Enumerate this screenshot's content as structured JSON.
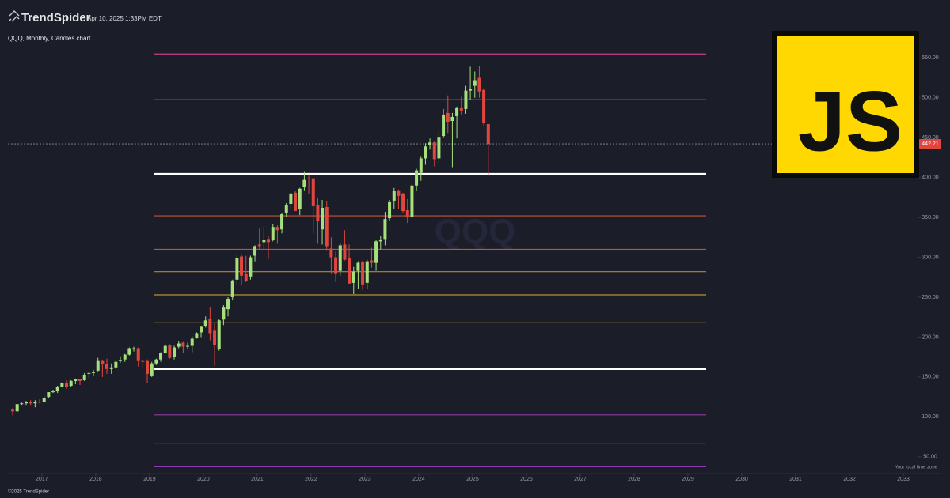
{
  "chart_data": {
    "type": "candlestick",
    "brand": "TrendSpider",
    "timestamp": "Apr 10, 2025 1:33PM EDT",
    "title": "QQQ, Monthly, Candles chart",
    "watermark": "QQQ",
    "copyright": "©2025 TrendSpider",
    "timezone_note": "Your local time zone",
    "badge": "JS",
    "up_color": "#a5e07a",
    "down_color": "#e0463d",
    "xlim": [
      2016.37,
      2033.72
    ],
    "xticks": [
      2017,
      2018,
      2019,
      2020,
      2021,
      2022,
      2023,
      2024,
      2025,
      2026,
      2027,
      2028,
      2029,
      2030,
      2031,
      2032,
      2033
    ],
    "ylim": [
      28,
      583
    ],
    "yticks": [
      {
        "value": 50,
        "label": "50.00"
      },
      {
        "value": 100,
        "label": "100.00"
      },
      {
        "value": 150,
        "label": "150.00"
      },
      {
        "value": 200,
        "label": "200.00"
      },
      {
        "value": 250,
        "label": "250.00"
      },
      {
        "value": 300,
        "label": "300.00"
      },
      {
        "value": 350,
        "label": "350.00"
      },
      {
        "value": 400,
        "label": "400.00"
      },
      {
        "value": 450,
        "label": "450.00"
      },
      {
        "value": 500,
        "label": "500.00"
      },
      {
        "value": 550,
        "label": "550.00"
      }
    ],
    "last_price": 442.21,
    "levels": [
      {
        "value": 555,
        "color": "#c2408a"
      },
      {
        "value": 497.5,
        "color": "#b84f9e"
      },
      {
        "value": 404.5,
        "color": "#ffffff"
      },
      {
        "value": 352,
        "color": "#c2533a"
      },
      {
        "value": 310,
        "color": "#c0562f"
      },
      {
        "value": 282,
        "color": "#b8862a"
      },
      {
        "value": 253,
        "color": "#b8962a"
      },
      {
        "value": 218,
        "color": "#a88a2a"
      },
      {
        "value": 160,
        "color": "#ffffff"
      },
      {
        "value": 102.5,
        "color": "#8e3aa0"
      },
      {
        "value": 67,
        "color": "#8a3aa6"
      },
      {
        "value": 37.5,
        "color": "#8a3ab4"
      }
    ],
    "x": [
      2016.458,
      2016.542,
      2016.625,
      2016.708,
      2016.792,
      2016.875,
      2016.958,
      2017.042,
      2017.125,
      2017.208,
      2017.292,
      2017.375,
      2017.458,
      2017.542,
      2017.625,
      2017.708,
      2017.792,
      2017.875,
      2017.958,
      2018.042,
      2018.125,
      2018.208,
      2018.292,
      2018.375,
      2018.458,
      2018.542,
      2018.625,
      2018.708,
      2018.792,
      2018.875,
      2018.958,
      2019.042,
      2019.125,
      2019.208,
      2019.292,
      2019.375,
      2019.458,
      2019.542,
      2019.625,
      2019.708,
      2019.792,
      2019.875,
      2019.958,
      2020.042,
      2020.125,
      2020.208,
      2020.292,
      2020.375,
      2020.458,
      2020.542,
      2020.625,
      2020.708,
      2020.792,
      2020.875,
      2020.958,
      2021.042,
      2021.125,
      2021.208,
      2021.292,
      2021.375,
      2021.458,
      2021.542,
      2021.625,
      2021.708,
      2021.792,
      2021.875,
      2021.958,
      2022.042,
      2022.125,
      2022.208,
      2022.292,
      2022.375,
      2022.458,
      2022.542,
      2022.625,
      2022.708,
      2022.792,
      2022.875,
      2022.958,
      2023.042,
      2023.125,
      2023.208,
      2023.292,
      2023.375,
      2023.458,
      2023.542,
      2023.625,
      2023.708,
      2023.792,
      2023.875,
      2023.958,
      2024.042,
      2024.125,
      2024.208,
      2024.292,
      2024.375,
      2024.458,
      2024.542,
      2024.625,
      2024.708,
      2024.792,
      2024.875,
      2024.958,
      2025.042,
      2025.125,
      2025.208,
      2025.292
    ],
    "open": [
      109,
      107,
      116,
      117,
      119,
      117,
      119,
      119,
      125,
      131,
      132,
      138,
      143,
      139,
      145,
      147,
      146,
      154,
      156,
      158,
      170,
      166,
      160,
      162,
      170,
      172,
      178,
      186,
      186,
      170,
      170,
      151,
      167,
      172,
      180,
      190,
      175,
      188,
      193,
      189,
      189,
      199,
      206,
      214,
      223,
      208,
      185,
      222,
      235,
      250,
      272,
      301,
      279,
      276,
      302,
      316,
      319,
      323,
      322,
      338,
      335,
      355,
      367,
      381,
      360,
      388,
      399,
      399,
      366,
      335,
      363,
      311,
      300,
      283,
      316,
      299,
      268,
      283,
      294,
      268,
      296,
      293,
      320,
      323,
      349,
      371,
      384,
      380,
      359,
      351,
      390,
      406,
      424,
      441,
      444,
      424,
      452,
      481,
      471,
      477,
      488,
      486,
      509,
      515,
      525,
      510,
      467
    ],
    "high": [
      111,
      116,
      118,
      120,
      121,
      121,
      122,
      126,
      131,
      134,
      139,
      143,
      146,
      146,
      148,
      148,
      155,
      157,
      159,
      174,
      171,
      173,
      167,
      171,
      176,
      179,
      187,
      188,
      187,
      172,
      172,
      169,
      173,
      181,
      191,
      191,
      189,
      195,
      194,
      193,
      201,
      206,
      213,
      226,
      238,
      217,
      222,
      240,
      250,
      272,
      303,
      304,
      302,
      302,
      315,
      336,
      338,
      327,
      342,
      340,
      355,
      368,
      380,
      383,
      387,
      408,
      404,
      399,
      375,
      372,
      371,
      325,
      307,
      318,
      334,
      316,
      288,
      295,
      296,
      297,
      312,
      322,
      327,
      357,
      372,
      387,
      385,
      381,
      373,
      394,
      411,
      427,
      443,
      449,
      446,
      458,
      486,
      503,
      481,
      489,
      501,
      515,
      539,
      533,
      540,
      512,
      467
    ],
    "low": [
      102,
      106,
      115,
      115,
      115,
      112,
      117,
      118,
      124,
      130,
      130,
      137,
      135,
      137,
      141,
      140,
      145,
      149,
      151,
      157,
      150,
      154,
      154,
      160,
      168,
      169,
      177,
      182,
      163,
      160,
      143,
      150,
      165,
      169,
      179,
      173,
      172,
      186,
      180,
      185,
      181,
      198,
      200,
      212,
      196,
      164,
      183,
      215,
      226,
      246,
      266,
      265,
      269,
      272,
      295,
      310,
      310,
      298,
      320,
      317,
      330,
      351,
      359,
      358,
      353,
      384,
      379,
      330,
      317,
      316,
      309,
      280,
      269,
      277,
      296,
      267,
      254,
      260,
      259,
      260,
      287,
      283,
      310,
      315,
      346,
      360,
      360,
      355,
      343,
      349,
      383,
      396,
      416,
      435,
      414,
      418,
      450,
      456,
      413,
      449,
      479,
      480,
      497,
      500,
      500,
      465,
      402
    ],
    "close": [
      107,
      116,
      117,
      119,
      117,
      119,
      118,
      124,
      131,
      132,
      138,
      143,
      138,
      145,
      147,
      145,
      153,
      155,
      156,
      170,
      166,
      160,
      162,
      169,
      171,
      178,
      186,
      186,
      170,
      169,
      154,
      167,
      172,
      180,
      189,
      174,
      187,
      192,
      188,
      189,
      198,
      205,
      213,
      221,
      205,
      190,
      221,
      237,
      248,
      271,
      299,
      277,
      270,
      300,
      314,
      314,
      322,
      319,
      338,
      334,
      354,
      366,
      380,
      358,
      386,
      397,
      398,
      364,
      346,
      362,
      314,
      300,
      280,
      315,
      297,
      267,
      282,
      293,
      266,
      295,
      293,
      320,
      322,
      348,
      370,
      383,
      377,
      358,
      350,
      390,
      409,
      424,
      439,
      444,
      423,
      451,
      479,
      470,
      476,
      488,
      484,
      509,
      511,
      522,
      508,
      468,
      442.21
    ]
  }
}
